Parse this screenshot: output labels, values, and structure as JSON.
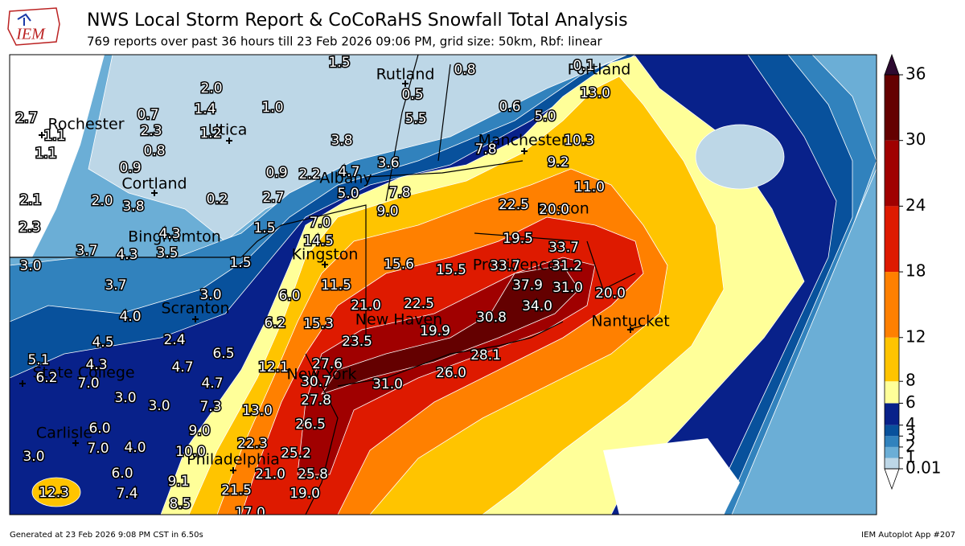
{
  "header": {
    "logo_text": "IEM",
    "title": "NWS Local Storm Report & CoCoRaHS Snowfall Total Analysis",
    "subtitle": "769 reports over past 36 hours till 23 Feb 2026 09:06 PM, grid size: 50km, Rbf: linear"
  },
  "map": {
    "cities": [
      "Rutland",
      "Rochester",
      "Utica",
      "Manchester",
      "Portland",
      "Cortland",
      "Albany",
      "Boston",
      "Binghamton",
      "Kingston",
      "Providence",
      "Scranton",
      "New Haven",
      "Nantucket",
      "State College",
      "New York",
      "Carlisle",
      "Philadelphia"
    ],
    "station_values": [
      "1.5",
      "0.8",
      "0.1",
      "2.0",
      "1.4",
      "1.0",
      "0.7",
      "2.7",
      "0.5",
      "13.0",
      "0.6",
      "5.0",
      "5.5",
      "2.3",
      "1.1",
      "1.2",
      "3.8",
      "7.8",
      "10.3",
      "0.8",
      "1.1",
      "3.6",
      "9.2",
      "0.9",
      "0.9",
      "2.2",
      "4.7",
      "11.0",
      "5.0",
      "7.8",
      "2.0",
      "2.1",
      "0.2",
      "2.7",
      "22.5",
      "20.0",
      "3.8",
      "9.0",
      "7.0",
      "2.3",
      "1.5",
      "4.3",
      "19.5",
      "14.5",
      "33.7",
      "3.7",
      "4.3",
      "3.5",
      "3.0",
      "1.5",
      "15.6",
      "15.5",
      "33.7",
      "31.2",
      "3.7",
      "11.5",
      "37.9",
      "31.0",
      "20.0",
      "3.0",
      "6.0",
      "21.0",
      "22.5",
      "34.0",
      "4.0",
      "30.8",
      "6.2",
      "15.3",
      "19.9",
      "2.4",
      "23.5",
      "4.5",
      "6.5",
      "28.1",
      "5.1",
      "4.3",
      "27.6",
      "4.7",
      "12.1",
      "26.0",
      "6.2",
      "7.0",
      "4.7",
      "30.7",
      "31.0",
      "3.0",
      "27.8",
      "3.0",
      "7.3",
      "13.0",
      "26.5",
      "6.0",
      "9.0",
      "22.3",
      "7.0",
      "4.0",
      "10.0",
      "25.2",
      "3.0",
      "6.0",
      "21.0",
      "25.8",
      "9.1",
      "12.3",
      "7.4",
      "21.5",
      "19.0",
      "8.5",
      "17.0"
    ]
  },
  "colorbar": {
    "levels": [
      0.01,
      1,
      2,
      3,
      4,
      6,
      8,
      12,
      18,
      24,
      30,
      36
    ],
    "colors": [
      "#bdd7e7",
      "#6baed6",
      "#3182bd",
      "#08519c",
      "#08218a",
      "#ffff99",
      "#ffc400",
      "#ff8000",
      "#de1a00",
      "#a00000",
      "#640000"
    ],
    "over_color": "#2d0a30",
    "under_color": "#ffffff"
  },
  "footer": {
    "left": "Generated at 23 Feb 2026 9:08 PM CST in 6.50s",
    "right": "IEM Autoplot App #207"
  }
}
